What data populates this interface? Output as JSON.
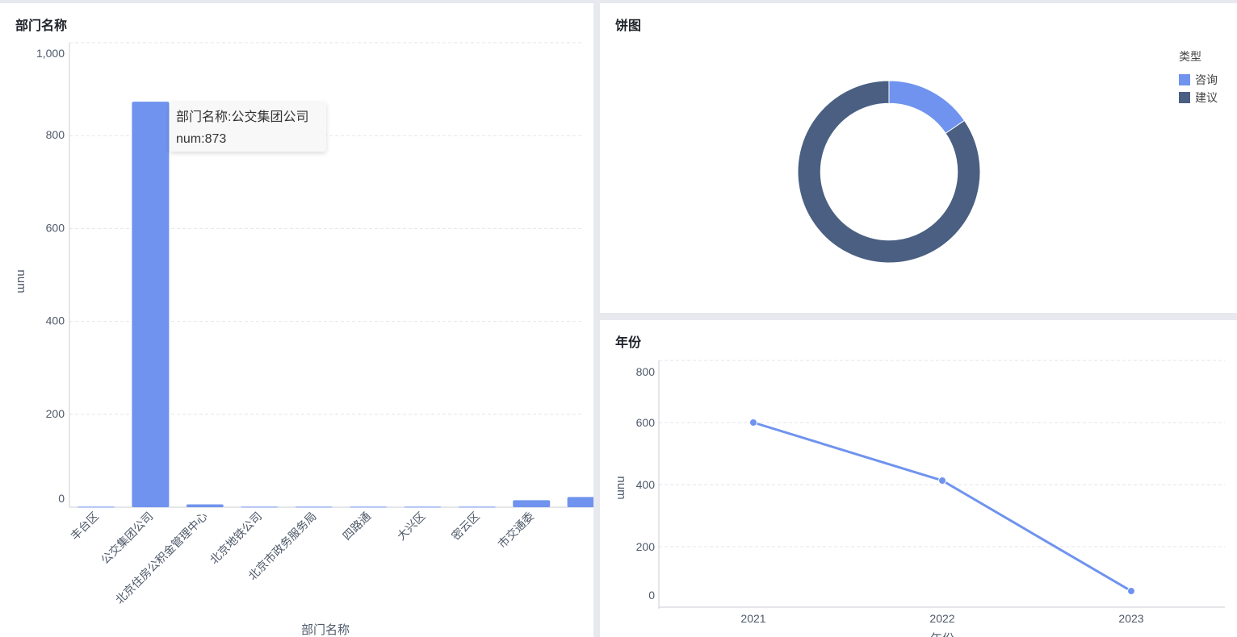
{
  "colors": {
    "primary": "#6f93ee",
    "secondary": "#4a5f82",
    "grid": "#e5e6eb",
    "axis": "#c9cdd4",
    "text": "#4e5969"
  },
  "bar_panel": {
    "title": "部门名称",
    "tooltip": {
      "line1": "部门名称:公交集团公司",
      "line2": "num:873"
    }
  },
  "pie_panel": {
    "title": "饼图",
    "legend_title": "类型"
  },
  "line_panel": {
    "title": "年份"
  },
  "chart_data": [
    {
      "type": "bar",
      "title": "部门名称",
      "xlabel": "部门名称",
      "ylabel": "num",
      "ylim": [
        0,
        1000
      ],
      "yticks": [
        0,
        200,
        400,
        600,
        800,
        1000
      ],
      "ytick_labels": [
        "0",
        "200",
        "400",
        "600",
        "800",
        "1,000"
      ],
      "categories": [
        "丰台区",
        "公交集团公司",
        "北京住房公积金管理中心",
        "北京地铁公司",
        "北京市政务服务局",
        "四路通",
        "大兴区",
        "密云区",
        "市交通委",
        ""
      ],
      "values": [
        1,
        873,
        6,
        1,
        1,
        1,
        1,
        1,
        15,
        22
      ],
      "grid": true
    },
    {
      "type": "pie",
      "title": "饼图",
      "legend_title": "类型",
      "legend_position": "top-right",
      "labels": [
        "咨询",
        "建议"
      ],
      "values": [
        15.5,
        84.5
      ],
      "inner_radius_ratio": 0.75
    },
    {
      "type": "line",
      "title": "年份",
      "xlabel": "年份",
      "ylabel": "num",
      "ylim": [
        0,
        800
      ],
      "yticks": [
        0,
        200,
        400,
        600,
        800
      ],
      "x": [
        "2021",
        "2022",
        "2023"
      ],
      "values": [
        600,
        413,
        57
      ],
      "grid": true
    }
  ]
}
